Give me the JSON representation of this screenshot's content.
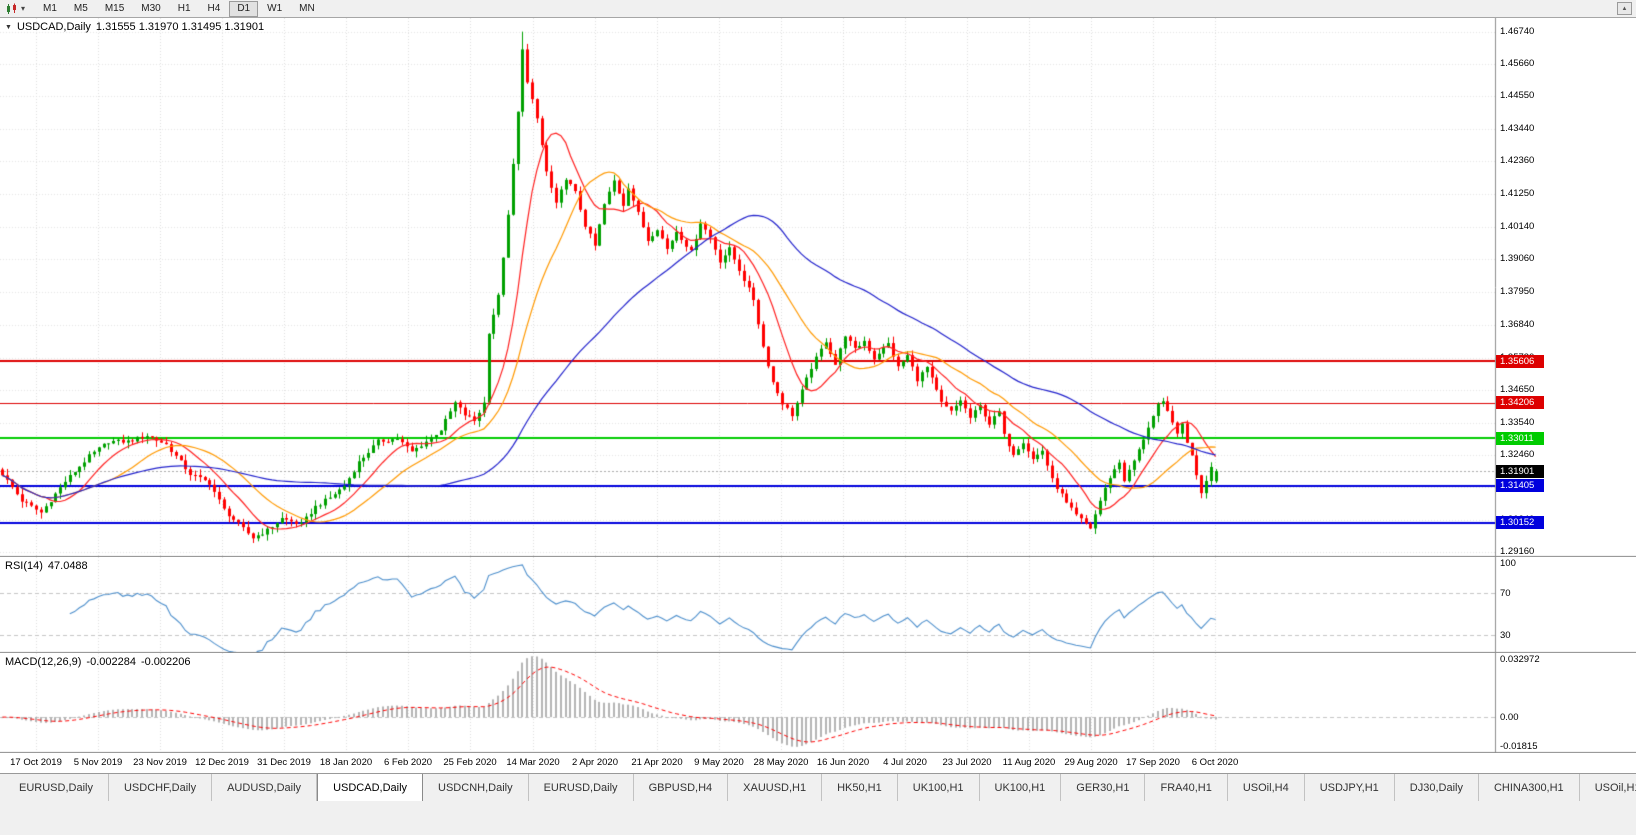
{
  "icons": {
    "collapse": "▼",
    "dropdown": "▾",
    "window": "▲",
    "tab_prev": "◄",
    "tab_next": "►"
  },
  "toolbar": {
    "timeframes": [
      "M1",
      "M5",
      "M15",
      "M30",
      "H1",
      "H4",
      "D1",
      "W1",
      "MN"
    ],
    "active_timeframe": "D1"
  },
  "main_chart": {
    "symbol_period": "USDCAD,Daily",
    "ohlc_text": "1.31555 1.31970 1.31495 1.31901",
    "open": "1.31555",
    "high": "1.31970",
    "low": "1.31495",
    "close": "1.31901",
    "y_ticks": [
      "1.46740",
      "1.45660",
      "1.44550",
      "1.43440",
      "1.42360",
      "1.41250",
      "1.40140",
      "1.39060",
      "1.37950",
      "1.36840",
      "1.35730",
      "1.34650",
      "1.33540",
      "1.32460",
      "1.31350",
      "1.30240",
      "1.29160"
    ]
  },
  "rsi_pane": {
    "title": "RSI(14)",
    "value": "47.0488",
    "labels": [
      {
        "text": "100",
        "value": 100
      },
      {
        "text": "70",
        "value": 70
      },
      {
        "text": "30",
        "value": 30
      }
    ],
    "levels": [
      70,
      30
    ],
    "scale_range": [
      13,
      104
    ],
    "line_color": "#4d8fcc"
  },
  "macd_pane": {
    "title": "MACD(12,26,9)",
    "value_main": "-0.002284",
    "value_signal": "-0.002206",
    "labels": [
      {
        "text": "0.032972",
        "value": 0.032972
      },
      {
        "text": "0.00",
        "value": 0
      },
      {
        "text": "-0.01815",
        "value": -0.01815
      }
    ],
    "scale_range": [
      -0.0185,
      0.033
    ],
    "histogram_color": "#b4b4b4",
    "signal_color": "#ff0000"
  },
  "x_axis": [
    "17 Oct 2019",
    "5 Nov 2019",
    "23 Nov 2019",
    "12 Dec 2019",
    "31 Dec 2019",
    "18 Jan 2020",
    "6 Feb 2020",
    "25 Feb 2020",
    "14 Mar 2020",
    "2 Apr 2020",
    "21 Apr 2020",
    "9 May 2020",
    "28 May 2020",
    "16 Jun 2020",
    "4 Jul 2020",
    "23 Jul 2020",
    "11 Aug 2020",
    "29 Aug 2020",
    "17 Sep 2020",
    "6 Oct 2020"
  ],
  "tabs": {
    "items": [
      "EURUSD,Daily",
      "USDCHF,Daily",
      "AUDUSD,Daily",
      "USDCAD,Daily",
      "USDCNH,Daily",
      "EURUSD,Daily",
      "GBPUSD,H4",
      "XAUUSD,H1",
      "HK50,H1",
      "UK100,H1",
      "UK100,H1",
      "GER30,H1",
      "FRA40,H1",
      "USOil,H4",
      "USDJPY,H1",
      "DJ30,Daily",
      "CHINA300,H1",
      "USOil,H1"
    ],
    "active_index": 3
  },
  "chart_data": {
    "type": "candlestick",
    "symbol": "USDCAD",
    "timeframe": "Daily",
    "bars": 253,
    "price_range": [
      1.29,
      1.472
    ],
    "last_bar": {
      "open": 1.31555,
      "high": 1.3197,
      "low": 1.31495,
      "close": 1.31901
    },
    "bid": 1.31901,
    "bid_label": "1.31901",
    "bid_color": "#000000",
    "candle_up_color": "#00a000",
    "candle_down_color": "#ff0000",
    "horizontal_lines": [
      {
        "price": 1.35606,
        "label": "1.35606",
        "color": "#dd0000",
        "width": 2
      },
      {
        "price": 1.34206,
        "label": "1.34206",
        "color": "#dd0000",
        "width": 1
      },
      {
        "price": 1.33011,
        "label": "1.33011",
        "color": "#00cc00",
        "width": 2
      },
      {
        "price": 1.31405,
        "label": "1.31405",
        "color": "#0000dd",
        "width": 2
      },
      {
        "price": 1.30152,
        "label": "1.30152",
        "color": "#0000dd",
        "width": 2
      }
    ],
    "moving_averages": [
      {
        "period": 10,
        "color": "#ff2020"
      },
      {
        "period": 21,
        "color": "#ff9900"
      },
      {
        "period": 55,
        "color": "#2222cc"
      }
    ],
    "noise": 0.0014,
    "wick": 0.0022,
    "extreme_high": [
      108,
      1.4674
    ],
    "extreme_low": [
      226,
      1.2994
    ],
    "close_anchors": [
      [
        0,
        1.318
      ],
      [
        4,
        1.309
      ],
      [
        8,
        1.305
      ],
      [
        13,
        1.3155
      ],
      [
        18,
        1.324
      ],
      [
        22,
        1.329
      ],
      [
        26,
        1.329
      ],
      [
        30,
        1.331
      ],
      [
        34,
        1.328
      ],
      [
        39,
        1.318
      ],
      [
        43,
        1.315
      ],
      [
        46,
        1.306
      ],
      [
        49,
        1.301
      ],
      [
        52,
        1.2965
      ],
      [
        55,
        1.299
      ],
      [
        58,
        1.303
      ],
      [
        62,
        1.301
      ],
      [
        65,
        1.307
      ],
      [
        68,
        1.31
      ],
      [
        71,
        1.314
      ],
      [
        74,
        1.322
      ],
      [
        78,
        1.329
      ],
      [
        82,
        1.33
      ],
      [
        85,
        1.3255
      ],
      [
        88,
        1.329
      ],
      [
        91,
        1.333
      ],
      [
        94,
        1.342
      ],
      [
        96,
        1.338
      ],
      [
        98,
        1.336
      ],
      [
        100,
        1.342
      ],
      [
        101,
        1.366
      ],
      [
        103,
        1.378
      ],
      [
        105,
        1.405
      ],
      [
        107,
        1.44
      ],
      [
        108,
        1.462
      ],
      [
        109,
        1.45
      ],
      [
        111,
        1.438
      ],
      [
        113,
        1.42
      ],
      [
        115,
        1.409
      ],
      [
        117,
        1.418
      ],
      [
        119,
        1.413
      ],
      [
        121,
        1.402
      ],
      [
        123,
        1.395
      ],
      [
        125,
        1.409
      ],
      [
        127,
        1.417
      ],
      [
        129,
        1.409
      ],
      [
        130,
        1.415
      ],
      [
        132,
        1.406
      ],
      [
        134,
        1.397
      ],
      [
        136,
        1.401
      ],
      [
        138,
        1.394
      ],
      [
        140,
        1.4
      ],
      [
        143,
        1.393
      ],
      [
        145,
        1.403
      ],
      [
        147,
        1.398
      ],
      [
        149,
        1.39
      ],
      [
        151,
        1.394
      ],
      [
        153,
        1.387
      ],
      [
        156,
        1.377
      ],
      [
        158,
        1.361
      ],
      [
        160,
        1.349
      ],
      [
        162,
        1.342
      ],
      [
        164,
        1.338
      ],
      [
        166,
        1.346
      ],
      [
        168,
        1.354
      ],
      [
        169,
        1.357
      ],
      [
        171,
        1.363
      ],
      [
        173,
        1.355
      ],
      [
        175,
        1.365
      ],
      [
        177,
        1.36
      ],
      [
        179,
        1.363
      ],
      [
        181,
        1.357
      ],
      [
        182,
        1.359
      ],
      [
        184,
        1.362
      ],
      [
        186,
        1.354
      ],
      [
        188,
        1.358
      ],
      [
        190,
        1.35
      ],
      [
        192,
        1.354
      ],
      [
        194,
        1.346
      ],
      [
        195,
        1.342
      ],
      [
        197,
        1.339
      ],
      [
        199,
        1.343
      ],
      [
        201,
        1.337
      ],
      [
        203,
        1.341
      ],
      [
        205,
        1.335
      ],
      [
        207,
        1.339
      ],
      [
        208,
        1.331
      ],
      [
        210,
        1.325
      ],
      [
        212,
        1.329
      ],
      [
        214,
        1.323
      ],
      [
        216,
        1.326
      ],
      [
        218,
        1.316
      ],
      [
        220,
        1.311
      ],
      [
        221,
        1.308
      ],
      [
        223,
        1.304
      ],
      [
        226,
        1.2998
      ],
      [
        228,
        1.309
      ],
      [
        230,
        1.317
      ],
      [
        232,
        1.322
      ],
      [
        233,
        1.316
      ],
      [
        234,
        1.319
      ],
      [
        236,
        1.326
      ],
      [
        238,
        1.334
      ],
      [
        240,
        1.341
      ],
      [
        241,
        1.342
      ],
      [
        243,
        1.336
      ],
      [
        244,
        1.331
      ],
      [
        245,
        1.335
      ],
      [
        246,
        1.329
      ],
      [
        247,
        1.324
      ],
      [
        248,
        1.318
      ],
      [
        249,
        1.312
      ],
      [
        250,
        1.316
      ],
      [
        251,
        1.321
      ],
      [
        252,
        1.319
      ]
    ],
    "rsi": {
      "period": 14,
      "current": 47.0488
    },
    "macd": {
      "fast": 12,
      "slow": 26,
      "signal_period": 9,
      "current": -0.002284,
      "current_signal": -0.002206
    }
  }
}
